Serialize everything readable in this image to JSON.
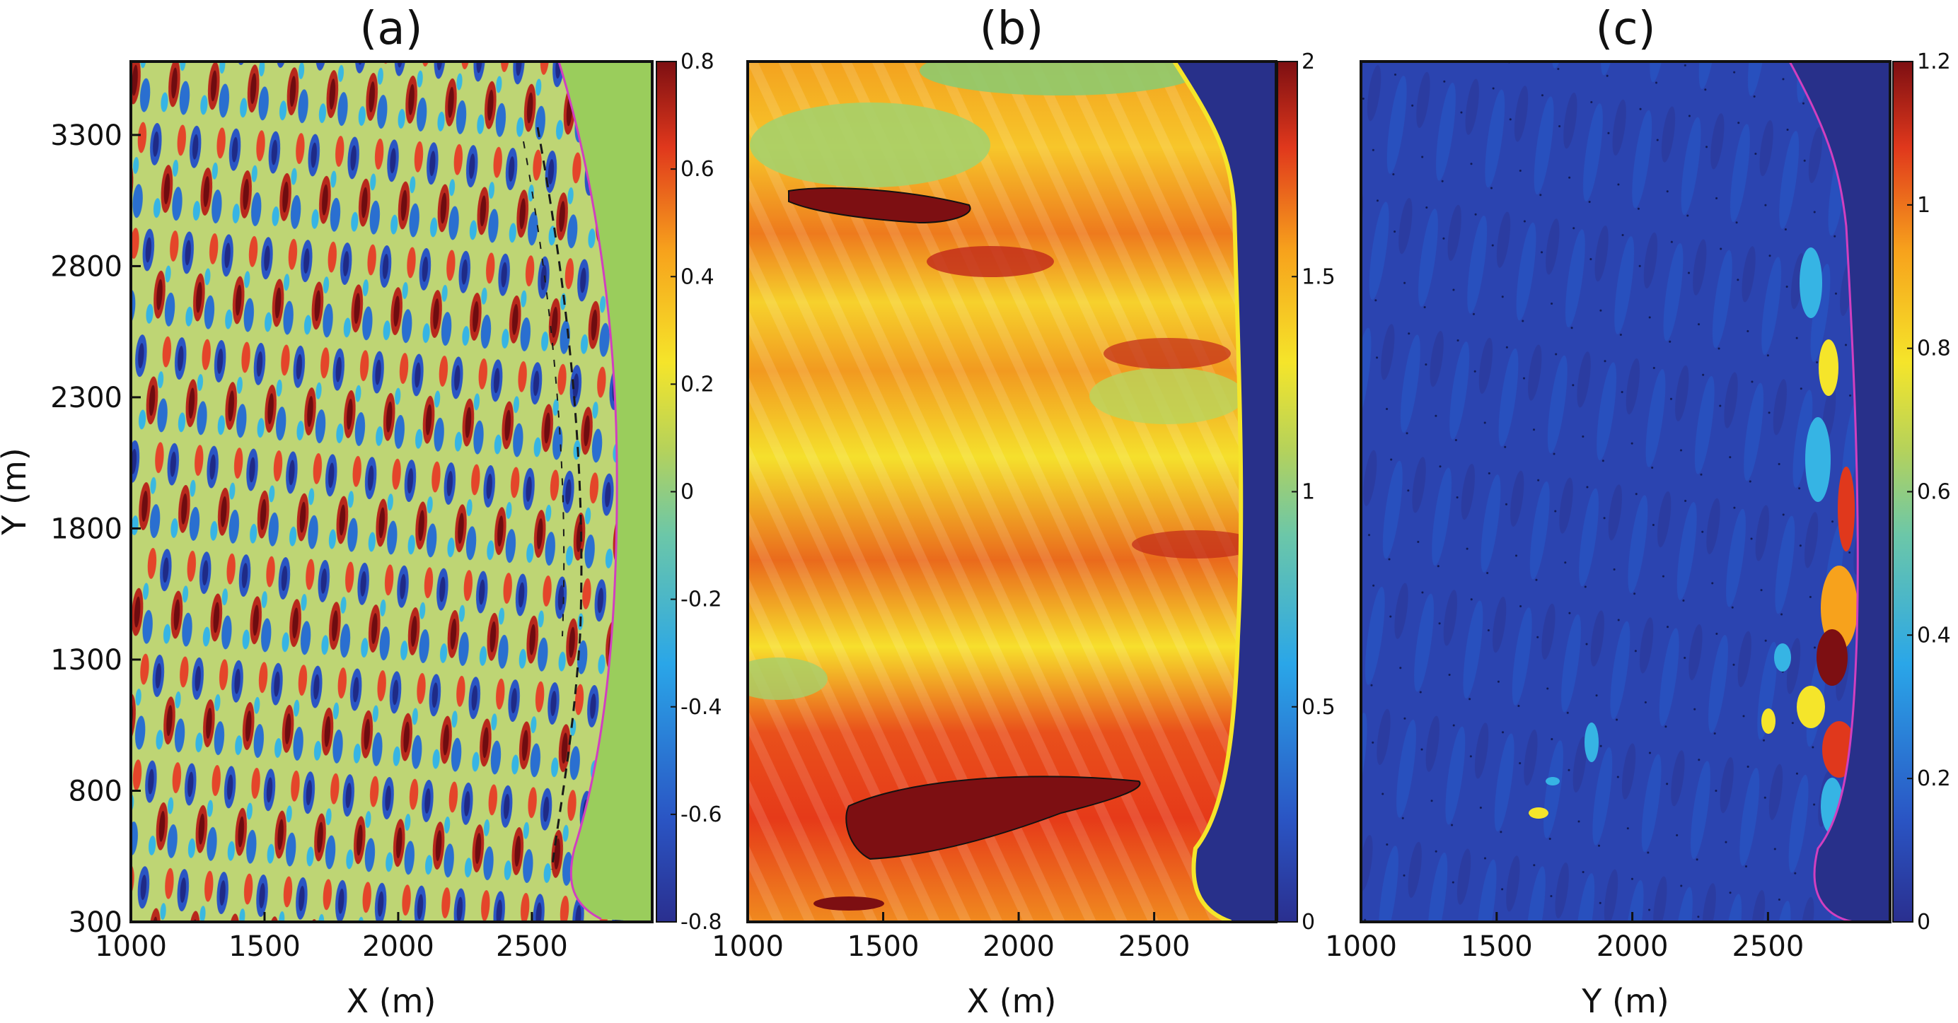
{
  "chart_data": [
    {
      "type": "heatmap",
      "title": "(a)",
      "xlabel": "X (m)",
      "ylabel": "Y (m)",
      "xlim": [
        1000,
        2950
      ],
      "ylim": [
        300,
        3580
      ],
      "xticks": [
        "1000",
        "1500",
        "2000",
        "2500"
      ],
      "yticks": [
        "300",
        "800",
        "1300",
        "1800",
        "2300",
        "2800",
        "3300"
      ],
      "colorbar": {
        "range": [
          -0.8,
          0.8
        ],
        "ticks": [
          "-0.8",
          "-0.6",
          "-0.4",
          "-0.2",
          "0",
          "0.2",
          "0.4",
          "0.6",
          "0.8"
        ],
        "colormap": "jet"
      },
      "land_color": "#9acd5c"
    },
    {
      "type": "heatmap",
      "title": "(b)",
      "xlabel": "X (m)",
      "ylabel": "",
      "xlim": [
        1000,
        2950
      ],
      "ylim": [
        300,
        3580
      ],
      "xticks": [
        "1000",
        "1500",
        "2000",
        "2500"
      ],
      "yticks": [],
      "colorbar": {
        "range": [
          0,
          2
        ],
        "ticks": [
          "0",
          "0.5",
          "1",
          "1.5",
          "2"
        ],
        "colormap": "jet"
      },
      "land_color": "#28308a"
    },
    {
      "type": "heatmap",
      "title": "(c)",
      "xlabel": "Y (m)",
      "ylabel": "",
      "xlim": [
        1000,
        2950
      ],
      "ylim": [
        300,
        3580
      ],
      "xticks": [
        "1000",
        "1500",
        "2000",
        "2500"
      ],
      "yticks": [],
      "colorbar": {
        "range": [
          0,
          1.2
        ],
        "ticks": [
          "0",
          "0.2",
          "0.4",
          "0.6",
          "0.8",
          "1",
          "1.2"
        ],
        "colormap": "jet"
      },
      "land_color": "#28308a"
    }
  ]
}
